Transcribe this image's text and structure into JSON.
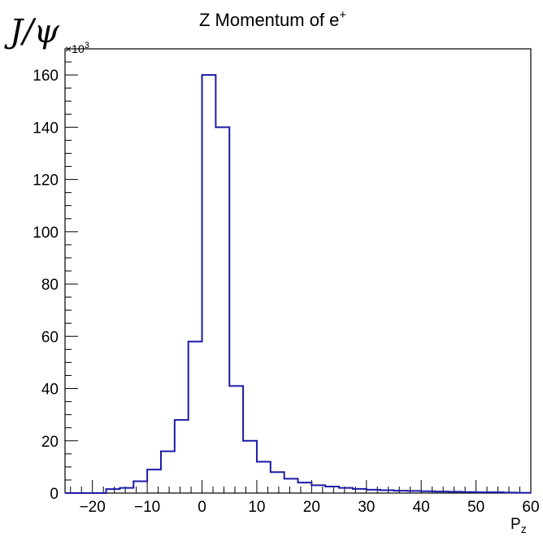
{
  "corner_label": "J/ψ",
  "chart_data": {
    "type": "histogram",
    "title": "Z Momentum of e",
    "title_superscript": "+",
    "xlabel": "P",
    "xlabel_subscript": "z",
    "ylabel": "",
    "y_multiplier_text": "×10",
    "y_multiplier_exponent": "3",
    "xlim": [
      -25,
      60
    ],
    "ylim": [
      0,
      170
    ],
    "x_ticks": [
      -20,
      -10,
      0,
      10,
      20,
      30,
      40,
      50,
      60
    ],
    "x_tick_labels": [
      "−20",
      "−10",
      "0",
      "10",
      "20",
      "30",
      "40",
      "50",
      "60"
    ],
    "y_ticks": [
      0,
      20,
      40,
      60,
      80,
      100,
      120,
      140,
      160
    ],
    "y_tick_labels": [
      "0",
      "20",
      "40",
      "60",
      "80",
      "100",
      "120",
      "140",
      "160"
    ],
    "bin_edges": [
      -25,
      -22.5,
      -20,
      -17.5,
      -15,
      -12.5,
      -10,
      -7.5,
      -5,
      -2.5,
      0,
      2.5,
      5,
      7.5,
      10,
      12.5,
      15,
      17.5,
      20,
      22.5,
      25,
      27.5,
      30,
      32.5,
      35,
      37.5,
      40,
      42.5,
      45,
      47.5,
      50,
      52.5,
      55,
      57.5,
      60
    ],
    "values": [
      0,
      0,
      0,
      1.5,
      2,
      4.5,
      9,
      16,
      28,
      58,
      160,
      140,
      41,
      20,
      12,
      8,
      5.5,
      4,
      3,
      2.5,
      2,
      1.6,
      1.3,
      1.1,
      0.9,
      0.8,
      0.7,
      0.6,
      0.5,
      0.4,
      0.3,
      0.3,
      0.2,
      0.1
    ],
    "line_color": "#1b1ba8",
    "grid": false
  }
}
